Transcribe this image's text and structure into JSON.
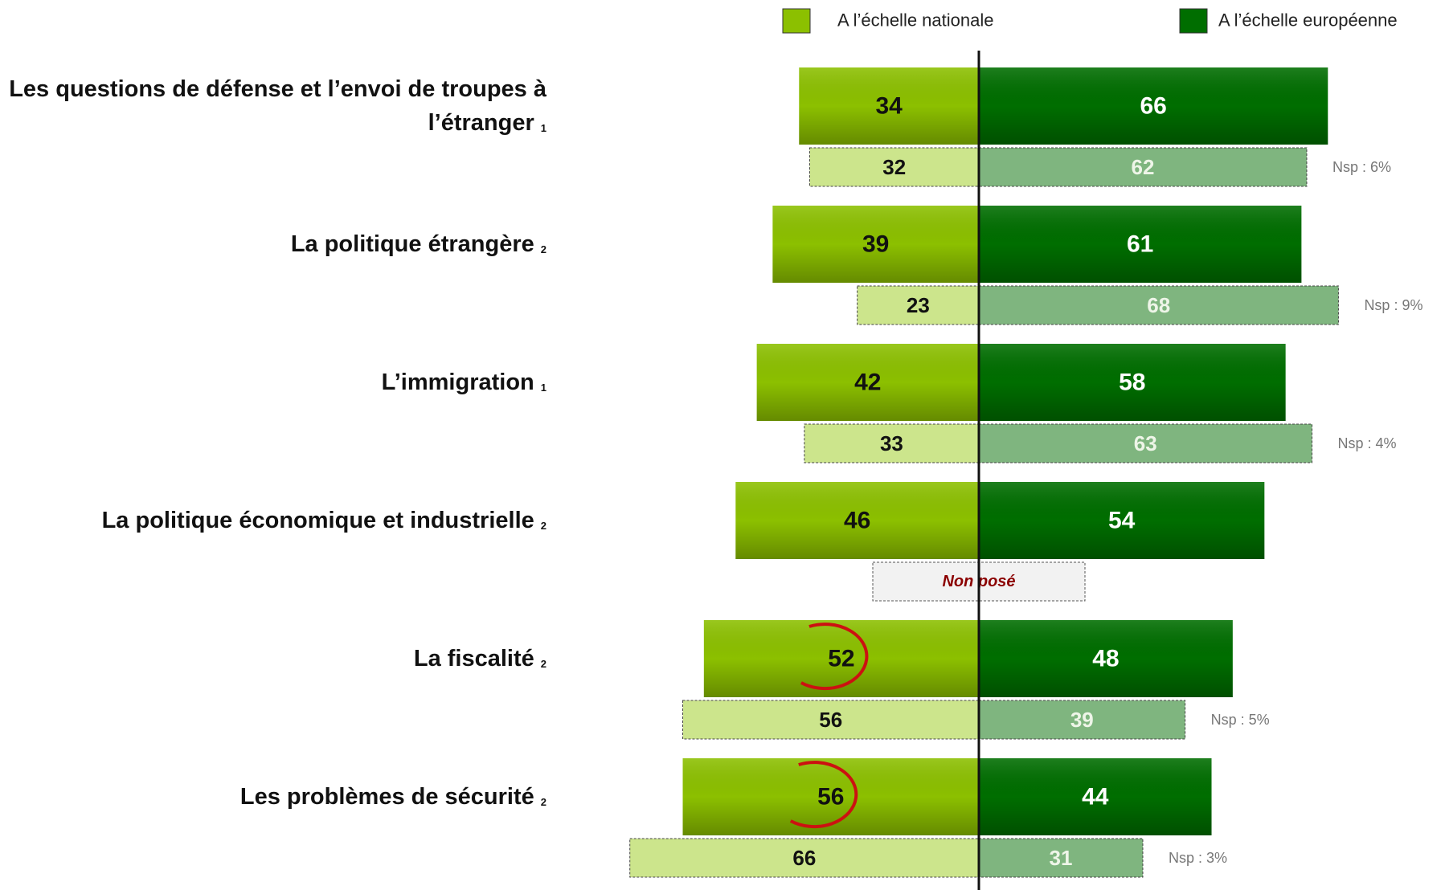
{
  "chart_data": {
    "type": "diverging-bar",
    "categories": [
      "Les questions de défense et l’envoi de troupes à l’étranger",
      "La politique étrangère",
      "L’immigration",
      "La politique économique et industrielle",
      "La fiscalité",
      "Les problèmes de sécurité"
    ],
    "footnotes": [
      "1",
      "2",
      "1",
      "2",
      "2",
      "2"
    ],
    "series": [
      {
        "name": "A l’échelle nationale",
        "color": "#8cc000",
        "values": [
          34,
          39,
          42,
          46,
          52,
          56
        ]
      },
      {
        "name": "A l’échelle européenne",
        "color": "#006e00",
        "values": [
          66,
          61,
          58,
          54,
          48,
          44
        ]
      }
    ],
    "previous_series": [
      {
        "color": "#cce58c",
        "values": [
          32,
          23,
          33,
          null,
          56,
          66
        ]
      },
      {
        "color": "#7fb57f",
        "values": [
          62,
          68,
          63,
          null,
          39,
          31
        ]
      }
    ],
    "notes": [
      "Nsp : 6%",
      "Nsp : 9%",
      "Nsp : 4%",
      null,
      "Nsp : 5%",
      "Nsp : 3%"
    ],
    "missing_label": "Non posé",
    "highlighted": [
      false,
      false,
      false,
      false,
      true,
      true
    ]
  }
}
